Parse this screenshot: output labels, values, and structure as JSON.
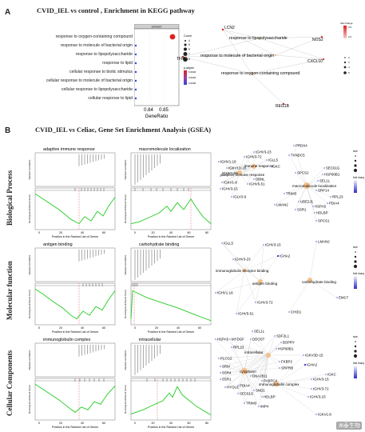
{
  "panel_a": {
    "letter": "A",
    "title": "CVID_IEL vs  control ,  Enrichment in KEGG pathway",
    "strip_label": "unknown",
    "terms": [
      "response to oxygen-containing compound",
      "response to molecule of bacterial origin",
      "response to lipopolysaccharide",
      "response to lipid",
      "cellular response to biotic stimulus",
      "cellular response to molecule of bacterial origin",
      "cellular response to lipopolysaccharide",
      "cellular response to lipid"
    ],
    "xlabel": "GeneRatio",
    "xticks": [
      "0.84",
      "0.85"
    ],
    "legend_count_title": "Count",
    "legend_count_values": [
      "4",
      "5",
      "6",
      "7",
      "8"
    ],
    "legend_padj_title": "p.adjust",
    "legend_padj_values": [
      "0.0002",
      "0.0004",
      "0.0006"
    ],
    "network": {
      "genes": [
        "LCN2",
        "TFPI",
        "NOS2",
        "CXCL10",
        "REG1B"
      ],
      "terms": [
        "response to lipopolysaccharide",
        "response to molecule of bacterial origin",
        "response to oxygen-containing compound"
      ],
      "size_values": [
        "2",
        "3",
        "4",
        "5"
      ],
      "fold_title": "fold change",
      "fold_values": [
        "2.0",
        "2.5",
        "3.0",
        "3.5"
      ]
    }
  },
  "panel_b": {
    "letter": "B",
    "title": "CVID_IEL vs  Celiac,  Gene Set Enrichment Analysis (GSEA)",
    "rows": [
      "Biological Process",
      "Molecular function",
      "Cellular Components"
    ],
    "ylabel_top": "Ranked List Metric",
    "ylabel_bottom": "Running Enrichment Score",
    "xlabel": "Position in the Ranked List of Genes",
    "xticks": [
      "0",
      "20",
      "40",
      "60"
    ],
    "xticks_long": [
      "0",
      "20",
      "40",
      "60",
      "80"
    ],
    "gsea": {
      "adaptive": "adaptive immune response",
      "macro": "macromolecule localization",
      "antigen": "antigen binding",
      "carb": "carbohydrate binding",
      "ig_complex": "immunoglobulin complex",
      "intracellular": "intracellular"
    },
    "bp_network": {
      "genes": [
        "PRDX4",
        "IGHV3-23",
        "IGHV3-72",
        "TXNDC5",
        "IGHV1-18",
        "IGLL5",
        "IGKC",
        "IGKV1D-16",
        "IGHV1-69",
        "IGKV1-8",
        "IGHV5-51",
        "IGHV3-15",
        "IGLV3-9",
        "DBNL",
        "SEC61G",
        "HSP90B1",
        "SEL1L",
        "SPCS2",
        "SRP14",
        "RPL23",
        "TRIM3",
        "SSR1",
        "LMAN2",
        "UBE2J1",
        "PDIA4",
        "HSPA5",
        "HDLBP",
        "SPCS1"
      ],
      "terms": [
        "immune response",
        "adaptive immune response",
        "macromolecule localization"
      ]
    },
    "mf_network": {
      "genes": [
        "IGLL5",
        "IGHV3-15",
        "IGHV3-23",
        "IGHA2",
        "IGHV1-18",
        "IGHV3-72",
        "IGHV5-51",
        "LMAN2",
        "CHID1",
        "EMC7"
      ],
      "terms": [
        "immunoglobulin receptor binding",
        "antigen binding",
        "carbohydrate binding"
      ]
    },
    "cc_network": {
      "genes": [
        "SEL1L",
        "SDF2L1",
        "HSPA5",
        "MYDGF",
        "DDOST",
        "BSPRY",
        "HSP90B1",
        "RPL23",
        "PLCG2",
        "SRM",
        "SSR4",
        "SSR1",
        "FKBP2",
        "SRPRB",
        "DNAJB11",
        "PABPC4",
        "HYOU1",
        "SEC61G",
        "SND1",
        "HDLBP",
        "TRIM3",
        "IMP4",
        "PDIA4",
        "IGKV3D-15",
        "IGHA2",
        "IGKC",
        "IGHV3-15",
        "IGHV3-72",
        "IGHV3-23",
        "IGKV1-8"
      ],
      "terms": [
        "cytoplasm",
        "intracellular",
        "immunoglobulin complex"
      ]
    },
    "legend_size_title": "size",
    "legend_fold_title": "fold change"
  },
  "watermark": "洲泰生物",
  "colors": {
    "gsea_line": "#22cc22",
    "network_gene": "#aab4f0",
    "network_term": "#f3c08c",
    "kegg_dot_blue": "#3344dd",
    "kegg_dot_red": "#e02020"
  }
}
